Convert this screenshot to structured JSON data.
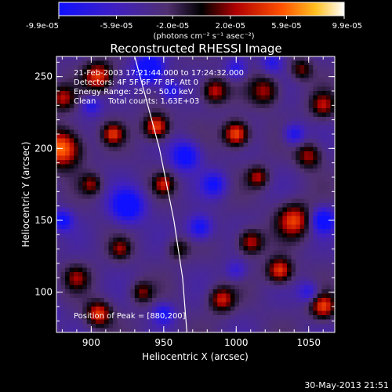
{
  "chart_data": {
    "type": "heatmap",
    "title": "Reconstructed RHESSI Image",
    "xlabel": "Heliocentric X (arcsec)",
    "ylabel": "Heliocentric Y (arcsec)",
    "xlim": [
      876,
      1068
    ],
    "ylim": [
      72,
      264
    ],
    "xticks": [
      900,
      950,
      1000,
      1050
    ],
    "yticks": [
      100,
      150,
      200,
      250
    ],
    "colorbar": {
      "min": -9.9e-05,
      "max": 9.9e-05,
      "tick_labels": [
        "-9.9e-05",
        "-5.9e-05",
        "-2.0e-05",
        "2.0e-05",
        "5.9e-05",
        "9.9e-05"
      ],
      "unit_label": "(photons cm⁻² s⁻¹ asec⁻²)"
    },
    "annotations": {
      "time_range": "21-Feb-2003 17:21:44.000 to 17:24:32.000",
      "detectors": "Detectors: 4F 5F 6F 7F 8F, Att 0",
      "energy": "Energy Range: 25.0 - 50.0 keV",
      "method": "Clean",
      "counts": "Total counts: 1.63E+03",
      "peak": "Position of Peak = [880,200]"
    },
    "limb": [
      [
        930,
        264
      ],
      [
        947,
        200
      ],
      [
        957,
        150
      ],
      [
        963,
        110
      ],
      [
        966,
        72
      ]
    ],
    "blobs": [
      [
        880,
        200,
        9,
        1.0
      ],
      [
        905,
        250,
        7,
        0.8
      ],
      [
        880,
        235,
        6,
        0.6
      ],
      [
        900,
        175,
        5,
        0.5
      ],
      [
        915,
        210,
        5,
        0.7
      ],
      [
        945,
        215,
        6,
        0.9
      ],
      [
        950,
        175,
        5,
        0.6
      ],
      [
        985,
        240,
        6,
        0.7
      ],
      [
        1000,
        210,
        6,
        0.95
      ],
      [
        1020,
        240,
        7,
        0.6
      ],
      [
        1015,
        180,
        5,
        0.6
      ],
      [
        1040,
        150,
        8,
        0.8
      ],
      [
        1050,
        195,
        6,
        0.6
      ],
      [
        1060,
        230,
        6,
        0.6
      ],
      [
        1010,
        135,
        6,
        0.7
      ],
      [
        1030,
        115,
        6,
        0.85
      ],
      [
        990,
        95,
        6,
        0.7
      ],
      [
        1060,
        90,
        6,
        0.8
      ],
      [
        890,
        110,
        6,
        0.5
      ],
      [
        905,
        85,
        6,
        0.8
      ],
      [
        920,
        130,
        5,
        0.5
      ],
      [
        960,
        130,
        5,
        0.4
      ],
      [
        935,
        100,
        5,
        0.5
      ],
      [
        1045,
        255,
        5,
        0.5
      ],
      [
        880,
        150,
        5,
        -0.7
      ],
      [
        925,
        160,
        8,
        -0.9
      ],
      [
        940,
        255,
        7,
        -1.0
      ],
      [
        955,
        240,
        5,
        -0.6
      ],
      [
        965,
        195,
        7,
        -0.8
      ],
      [
        975,
        145,
        6,
        -0.7
      ],
      [
        985,
        175,
        6,
        -0.6
      ],
      [
        1040,
        210,
        5,
        -0.6
      ],
      [
        1060,
        150,
        6,
        -0.8
      ],
      [
        1050,
        100,
        5,
        -0.5
      ],
      [
        1000,
        115,
        5,
        -0.4
      ],
      [
        900,
        230,
        5,
        -0.5
      ],
      [
        1025,
        260,
        5,
        -0.5
      ],
      [
        950,
        85,
        5,
        -0.6
      ],
      [
        1000,
        255,
        5,
        -0.5
      ],
      [
        870,
        85,
        5,
        -0.4
      ]
    ]
  },
  "footer": {
    "timestamp": "30-May-2013 21:51"
  }
}
